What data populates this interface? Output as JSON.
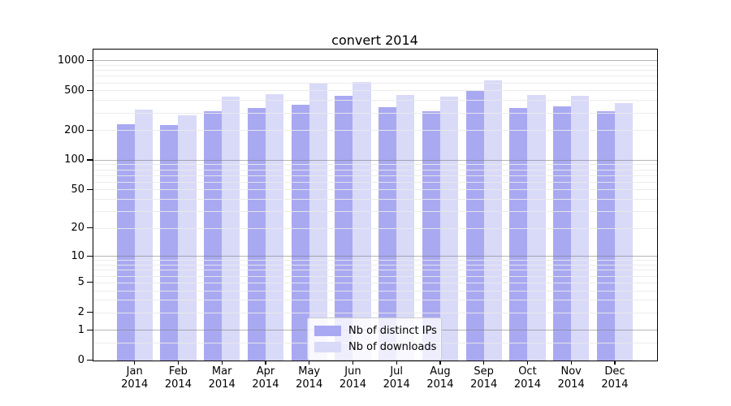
{
  "title": "convert 2014",
  "legend": {
    "items": [
      {
        "label": "Nb of distinct IPs",
        "color": "#a9a9f2"
      },
      {
        "label": "Nb of downloads",
        "color": "#d9d9f8"
      }
    ]
  },
  "y_axis": {
    "tick_labels": [
      "1000",
      "500",
      "200",
      "100",
      "50",
      "20",
      "10",
      "5",
      "2",
      "1",
      "0"
    ]
  },
  "x_axis": {
    "year_label": "2014"
  },
  "chart_data": {
    "type": "bar",
    "title": "convert 2014",
    "categories": [
      "Jan 2014",
      "Feb 2014",
      "Mar 2014",
      "Apr 2014",
      "May 2014",
      "Jun 2014",
      "Jul 2014",
      "Aug 2014",
      "Sep 2014",
      "Oct 2014",
      "Nov 2014",
      "Dec 2014"
    ],
    "series": [
      {
        "name": "Nb of distinct IPs",
        "color": "#a9a9f2",
        "values": [
          230,
          225,
          307,
          336,
          360,
          440,
          337,
          307,
          496,
          333,
          344,
          307
        ]
      },
      {
        "name": "Nb of downloads",
        "color": "#d9d9f8",
        "values": [
          321,
          280,
          437,
          460,
          596,
          605,
          446,
          432,
          636,
          452,
          443,
          373
        ]
      }
    ],
    "xlabel": "",
    "ylabel": "",
    "yscale": "log10(1+y)",
    "ylim": [
      0,
      1285
    ],
    "yticks": [
      0,
      1,
      2,
      5,
      10,
      20,
      50,
      100,
      200,
      500,
      1000
    ],
    "minor_gridlines": [
      0.5,
      2,
      3,
      4,
      5,
      6,
      7,
      8,
      9,
      20,
      30,
      40,
      50,
      60,
      70,
      80,
      90,
      200,
      300,
      400,
      500,
      600,
      700,
      800,
      900
    ],
    "major_gridlines": [
      1,
      10,
      100,
      1000
    ],
    "grid": true,
    "legend_position": "lower center"
  }
}
